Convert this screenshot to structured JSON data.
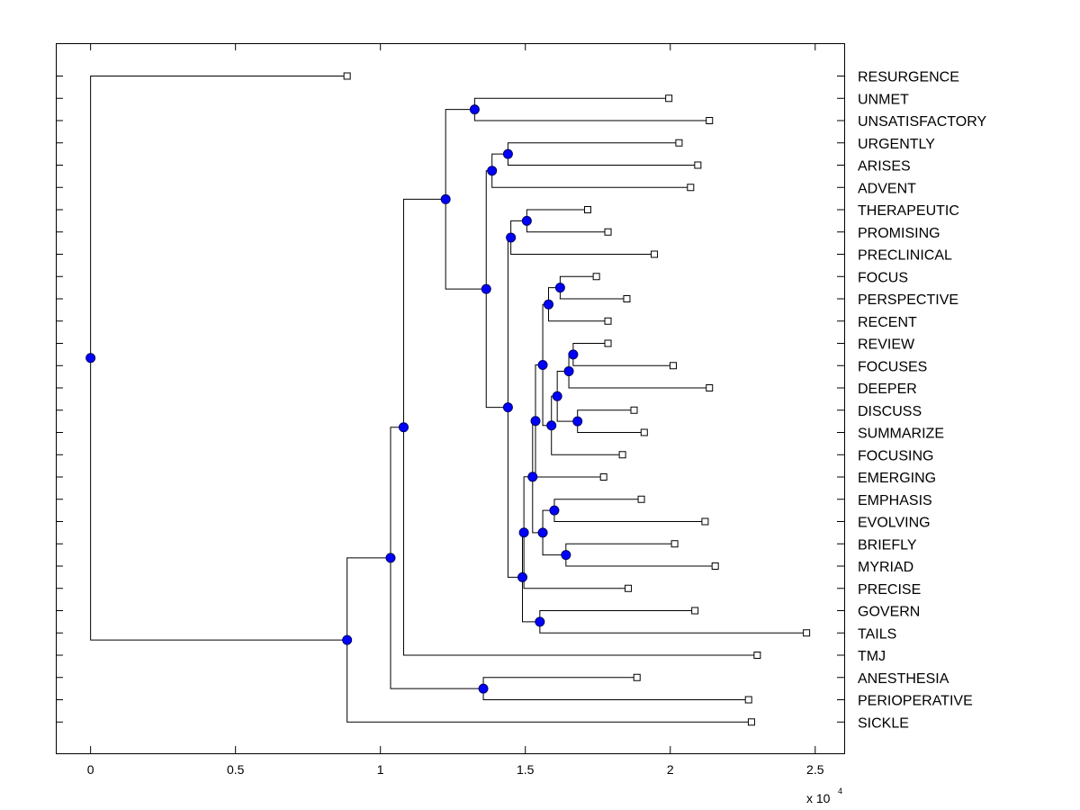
{
  "chart_data": {
    "type": "dendrogram",
    "x_scale_label": "x 10",
    "x_scale_exponent": "4",
    "xlim": [
      -0.12,
      2.6
    ],
    "x_ticks": [
      {
        "value": 0,
        "label": "0"
      },
      {
        "value": 0.5,
        "label": "0.5"
      },
      {
        "value": 1,
        "label": "1"
      },
      {
        "value": 1.5,
        "label": "1.5"
      },
      {
        "value": 2,
        "label": "2"
      },
      {
        "value": 2.5,
        "label": "2.5"
      }
    ],
    "leaves": [
      {
        "label": "RESURGENCE",
        "x": 0.885
      },
      {
        "label": "UNMET",
        "x": 1.995
      },
      {
        "label": "UNSATISFACTORY",
        "x": 2.135
      },
      {
        "label": "URGENTLY",
        "x": 2.03
      },
      {
        "label": "ARISES",
        "x": 2.095
      },
      {
        "label": "ADVENT",
        "x": 2.07
      },
      {
        "label": "THERAPEUTIC",
        "x": 1.715
      },
      {
        "label": "PROMISING",
        "x": 1.785
      },
      {
        "label": "PRECLINICAL",
        "x": 1.945
      },
      {
        "label": "FOCUS",
        "x": 1.745
      },
      {
        "label": "PERSPECTIVE",
        "x": 1.85
      },
      {
        "label": "RECENT",
        "x": 1.785
      },
      {
        "label": "REVIEW",
        "x": 1.785
      },
      {
        "label": "FOCUSES",
        "x": 2.01
      },
      {
        "label": "DEEPER",
        "x": 2.135
      },
      {
        "label": "DISCUSS",
        "x": 1.875
      },
      {
        "label": "SUMMARIZE",
        "x": 1.91
      },
      {
        "label": "FOCUSING",
        "x": 1.835
      },
      {
        "label": "EMERGING",
        "x": 1.77
      },
      {
        "label": "EMPHASIS",
        "x": 1.9
      },
      {
        "label": "EVOLVING",
        "x": 2.12
      },
      {
        "label": "BRIEFLY",
        "x": 2.015
      },
      {
        "label": "MYRIAD",
        "x": 2.155
      },
      {
        "label": "PRECISE",
        "x": 1.855
      },
      {
        "label": "GOVERN",
        "x": 2.085
      },
      {
        "label": "TAILS",
        "x": 2.47
      },
      {
        "label": "TMJ",
        "x": 2.3
      },
      {
        "label": "ANESTHESIA",
        "x": 1.885
      },
      {
        "label": "PERIOPERATIVE",
        "x": 2.27
      },
      {
        "label": "SICKLE",
        "x": 2.28
      }
    ],
    "merges": [
      {
        "id": "n1",
        "x": 1.325,
        "children": [
          "UNMET",
          "UNSATISFACTORY"
        ]
      },
      {
        "id": "n2",
        "x": 1.44,
        "children": [
          "URGENTLY",
          "ARISES"
        ]
      },
      {
        "id": "n3",
        "x": 1.385,
        "children": [
          "n2",
          "ADVENT"
        ]
      },
      {
        "id": "n4",
        "x": 1.505,
        "children": [
          "THERAPEUTIC",
          "PROMISING"
        ]
      },
      {
        "id": "n5",
        "x": 1.45,
        "children": [
          "n4",
          "PRECLINICAL"
        ]
      },
      {
        "id": "n6",
        "x": 1.62,
        "children": [
          "FOCUS",
          "PERSPECTIVE"
        ]
      },
      {
        "id": "n7",
        "x": 1.58,
        "children": [
          "n6",
          "RECENT"
        ]
      },
      {
        "id": "n8",
        "x": 1.665,
        "children": [
          "REVIEW",
          "FOCUSES"
        ]
      },
      {
        "id": "n9",
        "x": 1.65,
        "children": [
          "n8",
          "DEEPER"
        ]
      },
      {
        "id": "n10",
        "x": 1.68,
        "children": [
          "DISCUSS",
          "SUMMARIZE"
        ]
      },
      {
        "id": "n11",
        "x": 1.61,
        "children": [
          "n9",
          "n10"
        ]
      },
      {
        "id": "n12",
        "x": 1.59,
        "children": [
          "n11",
          "FOCUSING"
        ]
      },
      {
        "id": "n13",
        "x": 1.56,
        "children": [
          "n7",
          "n12"
        ]
      },
      {
        "id": "n14",
        "x": 1.535,
        "children": [
          "n13",
          "EMERGING"
        ]
      },
      {
        "id": "n15",
        "x": 1.6,
        "children": [
          "EMPHASIS",
          "EVOLVING"
        ]
      },
      {
        "id": "n16",
        "x": 1.64,
        "children": [
          "BRIEFLY",
          "MYRIAD"
        ]
      },
      {
        "id": "n17",
        "x": 1.56,
        "children": [
          "n15",
          "n16"
        ]
      },
      {
        "id": "n18",
        "x": 1.525,
        "children": [
          "n14",
          "n17"
        ]
      },
      {
        "id": "n19",
        "x": 1.495,
        "children": [
          "n18",
          "PRECISE"
        ]
      },
      {
        "id": "n20",
        "x": 1.55,
        "children": [
          "GOVERN",
          "TAILS"
        ]
      },
      {
        "id": "n21",
        "x": 1.49,
        "children": [
          "n19",
          "n20"
        ]
      },
      {
        "id": "n22",
        "x": 1.44,
        "children": [
          "n5",
          "n21"
        ]
      },
      {
        "id": "n23",
        "x": 1.365,
        "children": [
          "n3",
          "n22"
        ]
      },
      {
        "id": "n24",
        "x": 1.225,
        "children": [
          "n1",
          "n23"
        ]
      },
      {
        "id": "n25",
        "x": 1.08,
        "children": [
          "n24",
          "TMJ"
        ]
      },
      {
        "id": "n26",
        "x": 1.355,
        "children": [
          "ANESTHESIA",
          "PERIOPERATIVE"
        ]
      },
      {
        "id": "n27",
        "x": 1.035,
        "children": [
          "n25",
          "n26"
        ]
      },
      {
        "id": "n28",
        "x": 0.885,
        "children": [
          "n27",
          "SICKLE"
        ]
      },
      {
        "id": "n29",
        "x": 0.0,
        "children": [
          "RESURGENCE",
          "n28"
        ]
      }
    ]
  }
}
